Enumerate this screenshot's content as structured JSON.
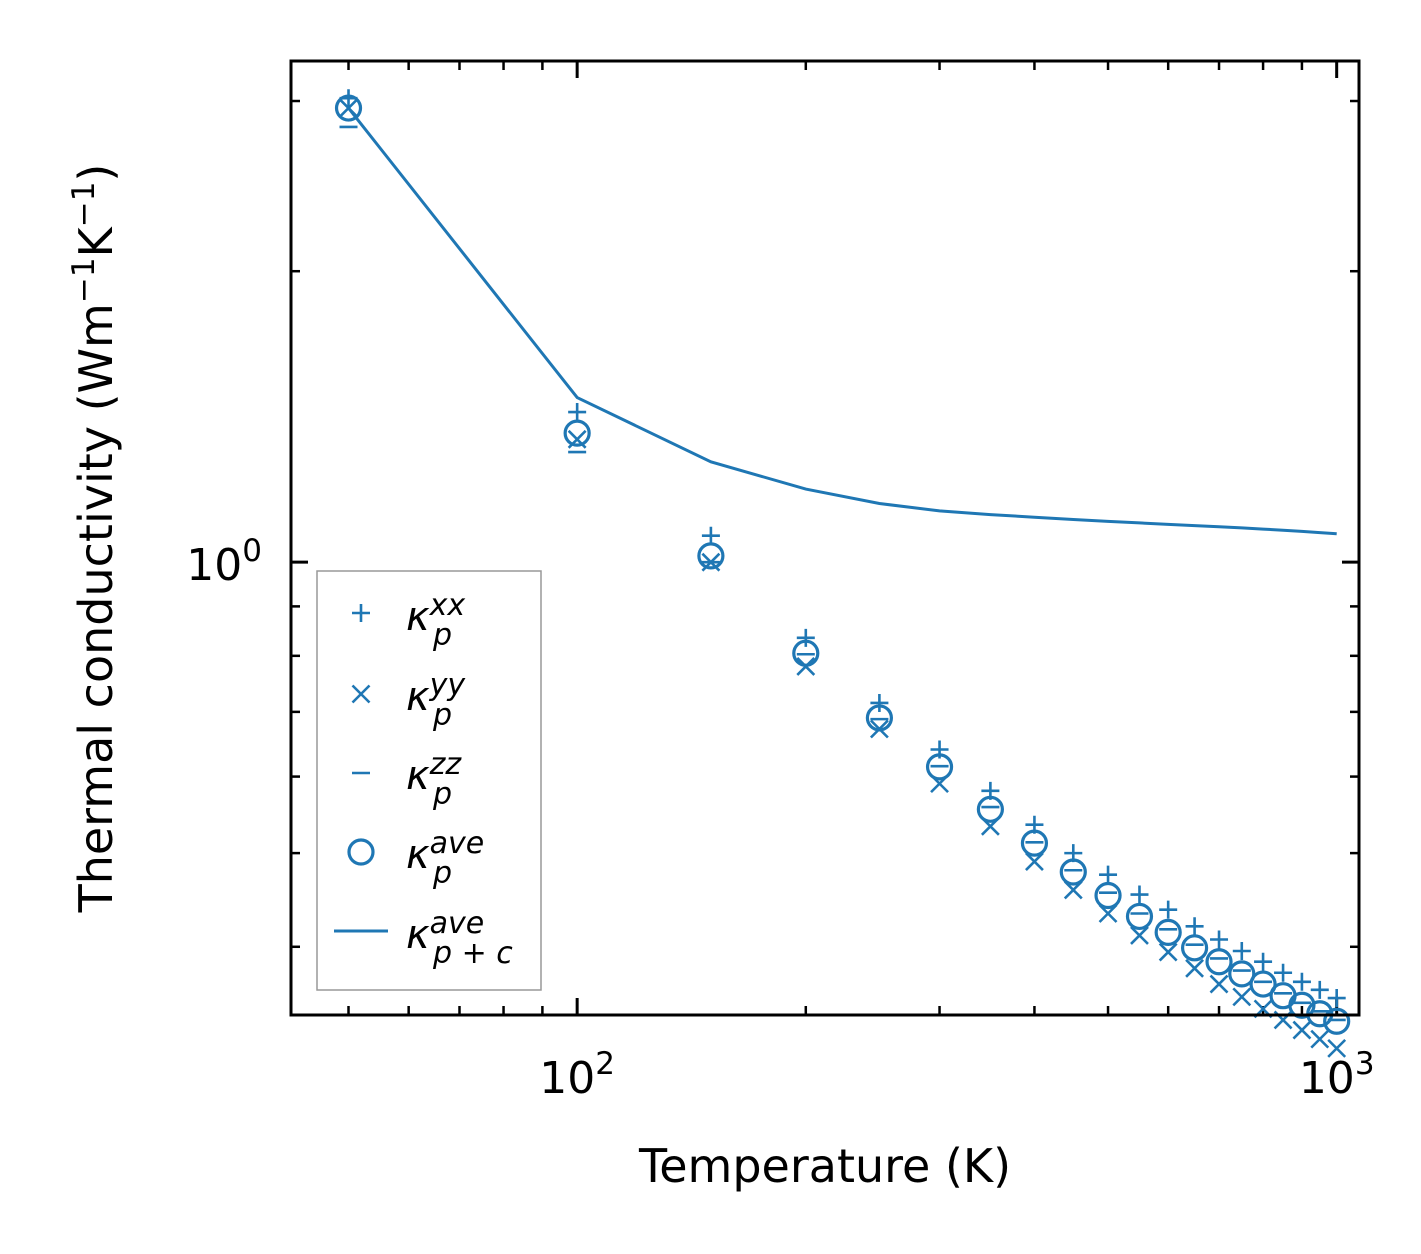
{
  "chart_data": {
    "type": "scatter",
    "xlabel": "Temperature (K)",
    "ylabel_main": "Thermal conductivity (Wm",
    "ylabel_exp1": "−1",
    "ylabel_mid": "K",
    "ylabel_exp2": "−1",
    "ylabel_end": ")",
    "xscale": "log",
    "yscale": "log",
    "xlim": [
      42,
      1070
    ],
    "ylim": [
      0.34,
      3.3
    ],
    "x_ticks": [
      {
        "value": 100,
        "base": "10",
        "exp": "2"
      },
      {
        "value": 1000,
        "base": "10",
        "exp": "3"
      }
    ],
    "y_ticks": [
      {
        "value": 1,
        "base": "10",
        "exp": "0"
      }
    ],
    "color": "#1f77b4",
    "x": [
      50,
      100,
      150,
      200,
      250,
      300,
      350,
      400,
      450,
      500,
      550,
      600,
      650,
      700,
      750,
      800,
      850,
      900,
      950,
      1000
    ],
    "series": [
      {
        "name": "κ_p^xx",
        "marker": "plus",
        "values": [
          3.02,
          1.43,
          1.065,
          0.835,
          0.715,
          0.64,
          0.58,
          0.535,
          0.5,
          0.475,
          0.453,
          0.437,
          0.42,
          0.407,
          0.396,
          0.386,
          0.376,
          0.368,
          0.361,
          0.354
        ]
      },
      {
        "name": "κ_p^yy",
        "marker": "x",
        "values": [
          2.95,
          1.34,
          1.0,
          0.78,
          0.672,
          0.59,
          0.533,
          0.49,
          0.458,
          0.433,
          0.411,
          0.395,
          0.38,
          0.366,
          0.355,
          0.345,
          0.336,
          0.328,
          0.321,
          0.314
        ]
      },
      {
        "name": "κ_p^zz",
        "marker": "hline",
        "values": [
          2.82,
          1.3,
          1.0,
          0.803,
          0.688,
          0.615,
          0.558,
          0.513,
          0.48,
          0.455,
          0.433,
          0.417,
          0.402,
          0.389,
          0.378,
          0.368,
          0.358,
          0.35,
          0.343,
          0.336
        ]
      },
      {
        "name": "κ_p^ave",
        "marker": "circle",
        "values": [
          2.95,
          1.36,
          1.015,
          0.805,
          0.69,
          0.614,
          0.555,
          0.512,
          0.478,
          0.452,
          0.43,
          0.414,
          0.399,
          0.386,
          0.375,
          0.366,
          0.356,
          0.348,
          0.341,
          0.335
        ]
      },
      {
        "name": "κ_{p+c}^ave",
        "marker": "line",
        "values": [
          2.95,
          1.48,
          1.27,
          1.19,
          1.15,
          1.13,
          1.12,
          1.113,
          1.107,
          1.102,
          1.098,
          1.094,
          1.091,
          1.088,
          1.085,
          1.082,
          1.079,
          1.076,
          1.073,
          1.07
        ]
      }
    ],
    "legend": {
      "placement": "lower-left",
      "entries": [
        {
          "base": "κ",
          "sup": "xx",
          "sub": "p"
        },
        {
          "base": "κ",
          "sup": "yy",
          "sub": "p"
        },
        {
          "base": "κ",
          "sup": "zz",
          "sub": "p"
        },
        {
          "base": "κ",
          "sup": "ave",
          "sub": "p"
        },
        {
          "base": "κ",
          "sup": "ave",
          "sub": "p + c"
        }
      ]
    }
  }
}
